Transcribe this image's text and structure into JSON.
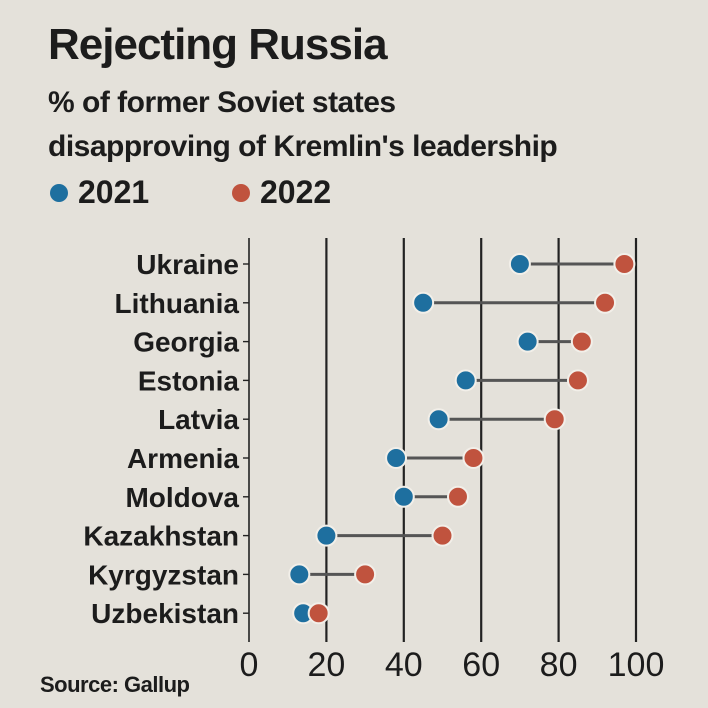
{
  "chart_data": {
    "type": "dumbbell",
    "title": "Rejecting Russia",
    "subtitle": [
      "% of former Soviet states",
      "disapproving of Kremlin's leadership"
    ],
    "categories": [
      "Ukraine",
      "Lithuania",
      "Georgia",
      "Estonia",
      "Latvia",
      "Armenia",
      "Moldova",
      "Kazakhstan",
      "Kyrgyzstan",
      "Uzbekistan"
    ],
    "series": [
      {
        "name": "2021",
        "color": "#1e6f9f",
        "values": [
          70,
          45,
          72,
          56,
          49,
          38,
          40,
          20,
          13,
          14
        ]
      },
      {
        "name": "2022",
        "color": "#c0533e",
        "values": [
          97,
          92,
          86,
          85,
          79,
          58,
          54,
          50,
          30,
          18
        ]
      }
    ],
    "xticks": [
      0,
      20,
      40,
      60,
      80,
      100
    ],
    "xlim": [
      0,
      100
    ],
    "grid": true,
    "source": "Source: Gallup"
  }
}
